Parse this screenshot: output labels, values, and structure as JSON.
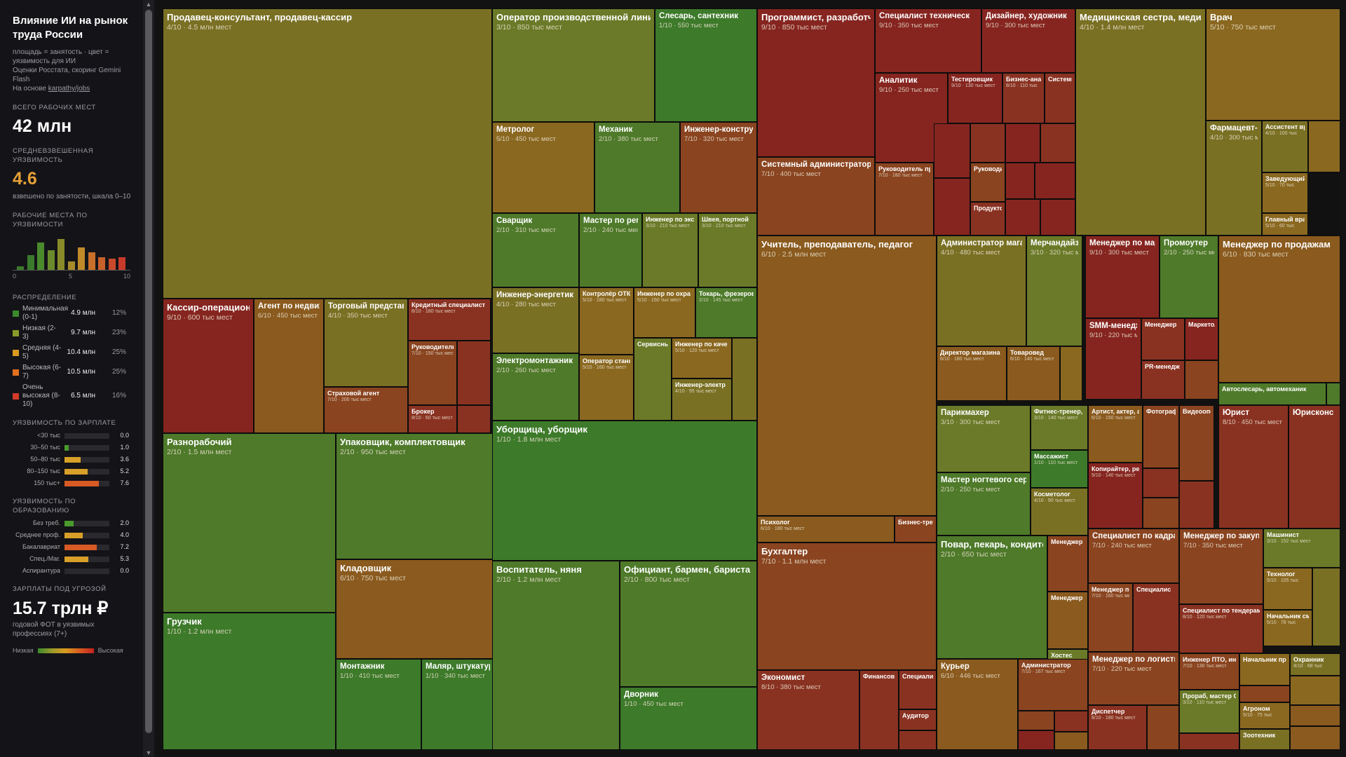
{
  "sidebar": {
    "title": "Влияние ИИ на рынок труда России",
    "note1": "площадь = занятость · цвет = уязвимость для ИИ",
    "note2": "Оценки Росстата, скоринг Gemini Flash",
    "note3_prefix": "На основе ",
    "note3_link": "karpathy/jobs",
    "total_label": "ВСЕГО РАБОЧИХ МЕСТ",
    "total_value": "42 млн",
    "avg_label": "СРЕДНЕВЗВЕШЕННАЯ УЯЗВИМОСТЬ",
    "avg_value": "4.6",
    "avg_note": "взвешено по занятости, шкала 0–10",
    "hist_label": "РАБОЧИЕ МЕСТА ПО УЯЗВИМОСТИ",
    "hist_ticks": [
      "0",
      "5",
      "10"
    ],
    "hist_values": [
      0.1,
      0.45,
      0.85,
      0.6,
      0.95,
      0.25,
      0.7,
      0.55,
      0.4,
      0.35,
      0.4
    ],
    "dist_label": "РАСПРЕДЕЛЕНИЕ",
    "dist": [
      {
        "name": "Минимальная (0-1)",
        "count": "4.9 млн",
        "pct": "12%",
        "color": "#3a8a2c"
      },
      {
        "name": "Низкая (2-3)",
        "count": "9.7 млн",
        "pct": "23%",
        "color": "#8a9a2a"
      },
      {
        "name": "Средняя (4-5)",
        "count": "10.4 млн",
        "pct": "25%",
        "color": "#d99a20"
      },
      {
        "name": "Высокая (6-7)",
        "count": "10.5 млн",
        "pct": "25%",
        "color": "#e07020"
      },
      {
        "name": "Очень высокая (8-10)",
        "count": "6.5 млн",
        "pct": "16%",
        "color": "#d43a2a"
      }
    ],
    "salary_label": "УЯЗВИМОСТЬ ПО ЗАРПЛАТЕ",
    "salary": [
      {
        "label": "<30 тыс",
        "value": "0.0"
      },
      {
        "label": "30–50 тыс",
        "value": "1.0"
      },
      {
        "label": "50–80 тыс",
        "value": "3.6"
      },
      {
        "label": "80–150 тыс",
        "value": "5.2"
      },
      {
        "label": "150 тыс+",
        "value": "7.6"
      }
    ],
    "edu_label": "УЯЗВИМОСТЬ ПО ОБРАЗОВАНИЮ",
    "edu": [
      {
        "label": "Без треб.",
        "value": "2.0"
      },
      {
        "label": "Среднее проф.",
        "value": "4.0"
      },
      {
        "label": "Бакалавриат",
        "value": "7.2"
      },
      {
        "label": "Спец./Маг.",
        "value": "5.3"
      },
      {
        "label": "Аспирантура",
        "value": "0.0"
      }
    ],
    "wages_label": "ЗАРПЛАТЫ ПОД УГРОЗОЙ",
    "wages_value": "15.7 трлн ₽",
    "wages_note": "годовой ФОТ в уязвимых профессиях (7+)",
    "legend_low": "Низкая",
    "legend_high": "Высокая"
  },
  "tiles": [
    {
      "title": "Продавец-консультант, продавец-кассир",
      "sub": "4/10 · 4.5 млн мест",
      "score": 4
    },
    {
      "title": "Кассир-операционист",
      "sub": "9/10 · 600 тыс мест",
      "score": 9
    },
    {
      "title": "Агент по недвижимости",
      "sub": "6/10 · 450 тыс мест",
      "score": 6
    },
    {
      "title": "Торговый представитель",
      "sub": "4/10 · 350 тыс мест",
      "score": 4
    },
    {
      "title": "Страховой агент",
      "sub": "7/10 · 200 тыс мест",
      "score": 7
    },
    {
      "title": "Кредитный специалист",
      "sub": "8/10 · 180 тыс мест",
      "score": 8
    },
    {
      "title": "Руководитель",
      "sub": "7/10 · 150 тыс мест",
      "score": 7
    },
    {
      "title": "",
      "sub": "",
      "score": 8
    },
    {
      "title": "Брокер",
      "sub": "8/10 · 60 тыс мест",
      "score": 8
    },
    {
      "title": "",
      "sub": "",
      "score": 8
    },
    {
      "title": "Разнорабочий",
      "sub": "2/10 · 1.5 млн мест",
      "score": 2
    },
    {
      "title": "Грузчик",
      "sub": "1/10 · 1.2 млн мест",
      "score": 1
    },
    {
      "title": "Упаковщик, комплектовщик",
      "sub": "2/10 · 950 тыс мест",
      "score": 2
    },
    {
      "title": "Кладовщик",
      "sub": "6/10 · 750 тыс мест",
      "score": 6
    },
    {
      "title": "Монтажник",
      "sub": "1/10 · 410 тыс мест",
      "score": 1
    },
    {
      "title": "Маляр, штукатур",
      "sub": "1/10 · 340 тыс мест",
      "score": 1
    },
    {
      "title": "Оператор производственной линии",
      "sub": "3/10 · 850 тыс мест",
      "score": 3
    },
    {
      "title": "Слесарь, сантехник",
      "sub": "1/10 · 550 тыс мест",
      "score": 1
    },
    {
      "title": "Метролог",
      "sub": "5/10 · 450 тыс мест",
      "score": 5
    },
    {
      "title": "Механик",
      "sub": "2/10 · 380 тыс мест",
      "score": 2
    },
    {
      "title": "Инженер-конструктор",
      "sub": "7/10 · 320 тыс мест",
      "score": 7
    },
    {
      "title": "Сварщик",
      "sub": "2/10 · 310 тыс мест",
      "score": 2
    },
    {
      "title": "Мастер по ремонту",
      "sub": "2/10 · 240 тыс мест",
      "score": 2
    },
    {
      "title": "Инженер по экс",
      "sub": "3/10 · 210 тыс мест",
      "score": 3
    },
    {
      "title": "Швея, портной",
      "sub": "3/10 · 210 тыс мест",
      "score": 3
    },
    {
      "title": "Инженер-энергетик",
      "sub": "4/10 · 280 тыс мест",
      "score": 4
    },
    {
      "title": "Контролёр ОТК",
      "sub": "5/10 · 180 тыс мест",
      "score": 5
    },
    {
      "title": "Инженер по охра",
      "sub": "5/10 · 150 тыс мест",
      "score": 5
    },
    {
      "title": "Токарь, фрезеров",
      "sub": "2/10 · 145 тыс мест",
      "score": 2
    },
    {
      "title": "Электромонтажник",
      "sub": "2/10 · 260 тыс мест",
      "score": 2
    },
    {
      "title": "Оператор станк",
      "sub": "5/10 · 160 тыс мест",
      "score": 5
    },
    {
      "title": "Сервисны",
      "sub": "",
      "score": 3
    },
    {
      "title": "Инженер по каче",
      "sub": "5/10 · 120 тыс мест",
      "score": 5
    },
    {
      "title": "Инженер-электр",
      "sub": "4/10 · 95 тыс мест",
      "score": 4
    },
    {
      "title": "",
      "sub": "",
      "score": 4
    },
    {
      "title": "Уборщица, уборщик",
      "sub": "1/10 · 1.8 млн мест",
      "score": 1
    },
    {
      "title": "Воспитатель, няня",
      "sub": "2/10 · 1.2 млн мест",
      "score": 2
    },
    {
      "title": "Официант, бармен, бариста",
      "sub": "2/10 · 800 тыс мест",
      "score": 2
    },
    {
      "title": "Дворник",
      "sub": "1/10 · 450 тыс мест",
      "score": 1
    },
    {
      "title": "Программист, разработчик",
      "sub": "9/10 · 850 тыс мест",
      "score": 9
    },
    {
      "title": "Специалист техническ",
      "sub": "9/10 · 350 тыс мест",
      "score": 9
    },
    {
      "title": "Дизайнер, художник",
      "sub": "9/10 · 300 тыс мест",
      "score": 9
    },
    {
      "title": "Аналитик",
      "sub": "9/10 · 250 тыс мест",
      "score": 9
    },
    {
      "title": "Тестировщик",
      "sub": "9/10 · 130 тыс мест",
      "score": 9
    },
    {
      "title": "Бизнес-анал",
      "sub": "8/10 · 110 тыс",
      "score": 8
    },
    {
      "title": "Системны",
      "sub": "",
      "score": 8
    },
    {
      "title": "Системный администратор",
      "sub": "7/10 · 400 тыс мест",
      "score": 7
    },
    {
      "title": "Руководитель пр",
      "sub": "7/10 · 180 тыс мест",
      "score": 7
    },
    {
      "title": "",
      "sub": "",
      "score": 9
    },
    {
      "title": "",
      "sub": "",
      "score": 8
    },
    {
      "title": "",
      "sub": "",
      "score": 9
    },
    {
      "title": "",
      "sub": "",
      "score": 8
    },
    {
      "title": "Руководи",
      "sub": "",
      "score": 7
    },
    {
      "title": "",
      "sub": "",
      "score": 9
    },
    {
      "title": "Продукто",
      "sub": "",
      "score": 8
    },
    {
      "title": "",
      "sub": "",
      "score": 9
    },
    {
      "title": "",
      "sub": "",
      "score": 9
    },
    {
      "title": "",
      "sub": "",
      "score": 9
    },
    {
      "title": "",
      "sub": "",
      "score": 9
    },
    {
      "title": "Медицинская сестра, медицинский брат",
      "sub": "4/10 · 1.4 млн мест",
      "score": 4
    },
    {
      "title": "Врач",
      "sub": "5/10 · 750 тыс мест",
      "score": 5
    },
    {
      "title": "Фармацевт-провизор",
      "sub": "4/10 · 300 тыс мест",
      "score": 4
    },
    {
      "title": "Ассистент вр",
      "sub": "4/10 · 100 тыс",
      "score": 4
    },
    {
      "title": "",
      "sub": "",
      "score": 5
    },
    {
      "title": "Заведующий",
      "sub": "5/10 · 70 тыс",
      "score": 5
    },
    {
      "title": "Главный вра",
      "sub": "5/10 · 60 тыс",
      "score": 5
    },
    {
      "title": "Учитель, преподаватель, педагог",
      "sub": "6/10 · 2.5 млн мест",
      "score": 6
    },
    {
      "title": "Психолог",
      "sub": "6/10 · 180 тыс мест",
      "score": 6
    },
    {
      "title": "Бизнес-тре",
      "sub": "",
      "score": 7
    },
    {
      "title": "Бухгалтер",
      "sub": "7/10 · 1.1 млн мест",
      "score": 7
    },
    {
      "title": "Экономист",
      "sub": "8/10 · 380 тыс мест",
      "score": 8
    },
    {
      "title": "Финансов",
      "sub": "",
      "score": 8
    },
    {
      "title": "Специалис",
      "sub": "",
      "score": 8
    },
    {
      "title": "Аудитор",
      "sub": "",
      "score": 8
    },
    {
      "title": "",
      "sub": "",
      "score": 8
    },
    {
      "title": "",
      "sub": "",
      "score": 8
    },
    {
      "title": "Администратор магазина",
      "sub": "4/10 · 480 тыс мест",
      "score": 4
    },
    {
      "title": "Мерчандайзер",
      "sub": "3/10 · 320 тыс мест",
      "score": 3
    },
    {
      "title": "Директор магазина",
      "sub": "6/10 · 180 тыс мест",
      "score": 6
    },
    {
      "title": "Товаровед",
      "sub": "6/10 · 140 тыс мест",
      "score": 6
    },
    {
      "title": "",
      "sub": "",
      "score": 5
    },
    {
      "title": "Менеджер по маркетингу",
      "sub": "9/10 · 300 тыс мест",
      "score": 9
    },
    {
      "title": "Промоутер",
      "sub": "2/10 · 250 тыс мест",
      "score": 2
    },
    {
      "title": "SMM-менеджер",
      "sub": "9/10 · 220 тыс мест",
      "score": 9
    },
    {
      "title": "Менеджер",
      "sub": "",
      "score": 8
    },
    {
      "title": "Маркетол",
      "sub": "",
      "score": 9
    },
    {
      "title": "PR-менедж",
      "sub": "",
      "score": 8
    },
    {
      "title": "",
      "sub": "",
      "score": 7
    },
    {
      "title": "Менеджер по продажам",
      "sub": "6/10 · 830 тыс мест",
      "score": 6
    },
    {
      "title": "Автослесарь, автомеханик",
      "sub": "",
      "score": 2
    },
    {
      "title": "",
      "sub": "",
      "score": 2
    },
    {
      "title": "Парикмахер",
      "sub": "3/10 · 300 тыс мест",
      "score": 3
    },
    {
      "title": "Фитнес-тренер, инструктор",
      "sub": "3/10 · 140 тыс мест",
      "score": 3
    },
    {
      "title": "Мастер ногтевого сервиса",
      "sub": "2/10 · 250 тыс мест",
      "score": 2
    },
    {
      "title": "Массажист",
      "sub": "1/10 · 110 тыс мест",
      "score": 1
    },
    {
      "title": "Косметолог",
      "sub": "4/10 · 90 тыс мест",
      "score": 4
    },
    {
      "title": "Артист, актер, а",
      "sub": "6/10 · 150 тыс мест",
      "score": 6
    },
    {
      "title": "Фотограф",
      "sub": "",
      "score": 7
    },
    {
      "title": "Копирайтер, ре",
      "sub": "9/10 · 140 тыс мест",
      "score": 9
    },
    {
      "title": "Видеоопер",
      "sub": "",
      "score": 7
    },
    {
      "title": "",
      "sub": "",
      "score": 8
    },
    {
      "title": "",
      "sub": "",
      "score": 7
    },
    {
      "title": "",
      "sub": "",
      "score": 8
    },
    {
      "title": "Юрист",
      "sub": "8/10 · 450 тыс мест",
      "score": 8
    },
    {
      "title": "Юрисконс",
      "sub": "",
      "score": 8
    },
    {
      "title": "Повар, пекарь, кондитер",
      "sub": "2/10 · 650 тыс мест",
      "score": 2
    },
    {
      "title": "Менеджер",
      "sub": "",
      "score": 7
    },
    {
      "title": "Менеджер",
      "sub": "",
      "score": 6
    },
    {
      "title": "Хостес",
      "sub": "",
      "score": 3
    },
    {
      "title": "Курьер",
      "sub": "6/10 · 446 тыс мест",
      "score": 6
    },
    {
      "title": "Администратор",
      "sub": "7/10 · 167 тыс мест",
      "score": 7
    },
    {
      "title": "",
      "sub": "",
      "score": 7
    },
    {
      "title": "",
      "sub": "",
      "score": 8
    },
    {
      "title": "",
      "sub": "",
      "score": 9
    },
    {
      "title": "",
      "sub": "",
      "score": 6
    },
    {
      "title": "",
      "sub": "",
      "score": 8
    },
    {
      "title": "",
      "sub": "",
      "score": 3
    },
    {
      "title": "Специалист по кадрам",
      "sub": "7/10 · 240 тыс мест",
      "score": 7
    },
    {
      "title": "Менеджер по",
      "sub": "7/10 · 160 тыс мест",
      "score": 7
    },
    {
      "title": "Специалис",
      "sub": "",
      "score": 8
    },
    {
      "title": "Менеджер по логистике",
      "sub": "7/10 · 220 тыс мест",
      "score": 7
    },
    {
      "title": "Диспетчер",
      "sub": "8/10 · 180 тыс мест",
      "score": 8
    },
    {
      "title": "",
      "sub": "",
      "score": 7
    },
    {
      "title": "",
      "sub": "",
      "score": 6
    },
    {
      "title": "Менеджер по закупкам",
      "sub": "7/10 · 350 тыс мест",
      "score": 7
    },
    {
      "title": "Специалист по тендерам",
      "sub": "8/10 · 120 тыс мест",
      "score": 8
    },
    {
      "title": "Машинист",
      "sub": "3/10 · 152 тыс мест",
      "score": 3
    },
    {
      "title": "Технолог",
      "sub": "5/10 · 105 тыс",
      "score": 5
    },
    {
      "title": "Начальник см",
      "sub": "5/10 · 78 тыс",
      "score": 5
    },
    {
      "title": "Инженер ПТО, ин",
      "sub": "7/10 · 130 тыс мест",
      "score": 7
    },
    {
      "title": "Начальник прс",
      "sub": "",
      "score": 5
    },
    {
      "title": "Охранник",
      "sub": "4/10 · 68 тыс",
      "score": 4
    },
    {
      "title": "Прораб, мастер С",
      "sub": "3/10 · 110 тыс мест",
      "score": 3
    },
    {
      "title": "Агроном",
      "sub": "5/10 · 75 тыс",
      "score": 5
    },
    {
      "title": "Зоотехник",
      "sub": "",
      "score": 4
    },
    {
      "title": "",
      "sub": "",
      "score": 5
    },
    {
      "title": "",
      "sub": "",
      "score": 8
    },
    {
      "title": "",
      "sub": "",
      "score": 6
    },
    {
      "title": "",
      "sub": "",
      "score": 4
    },
    {
      "title": "",
      "sub": "",
      "score": 7
    },
    {
      "title": "",
      "sub": "",
      "score": 6
    },
    {
      "title": "",
      "sub": "",
      "score": 5
    },
    {
      "title": "",
      "sub": "",
      "score": 3
    },
    {
      "title": "",
      "sub": "",
      "score": 8
    },
    {
      "title": "",
      "sub": "",
      "score": 6
    },
    {
      "title": "",
      "sub": "",
      "score": 2
    },
    {
      "title": "",
      "sub": "",
      "score": 7
    },
    {
      "title": "",
      "sub": "",
      "score": 5
    }
  ]
}
